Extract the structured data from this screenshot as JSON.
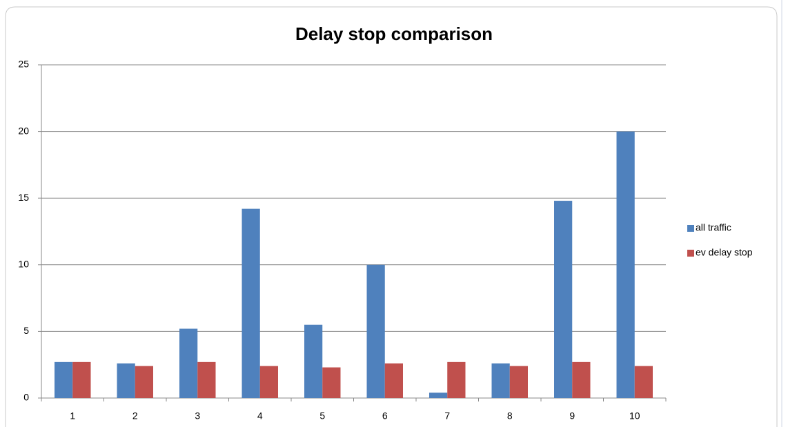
{
  "chart_data": {
    "type": "bar",
    "title": "Delay stop comparison",
    "categories": [
      "1",
      "2",
      "3",
      "4",
      "5",
      "6",
      "7",
      "8",
      "9",
      "10"
    ],
    "series": [
      {
        "name": "all traffic",
        "color": "#4f81bd",
        "values": [
          2.7,
          2.6,
          5.2,
          14.2,
          5.5,
          10.0,
          0.4,
          2.6,
          14.8,
          20.0
        ]
      },
      {
        "name": "ev delay stop",
        "color": "#c0504d",
        "values": [
          2.7,
          2.4,
          2.7,
          2.4,
          2.3,
          2.6,
          2.7,
          2.4,
          2.7,
          2.4
        ]
      }
    ],
    "ylim": [
      0,
      25
    ],
    "yticks": [
      0,
      5,
      10,
      15,
      20,
      25
    ],
    "grid": true,
    "legend": "right"
  }
}
